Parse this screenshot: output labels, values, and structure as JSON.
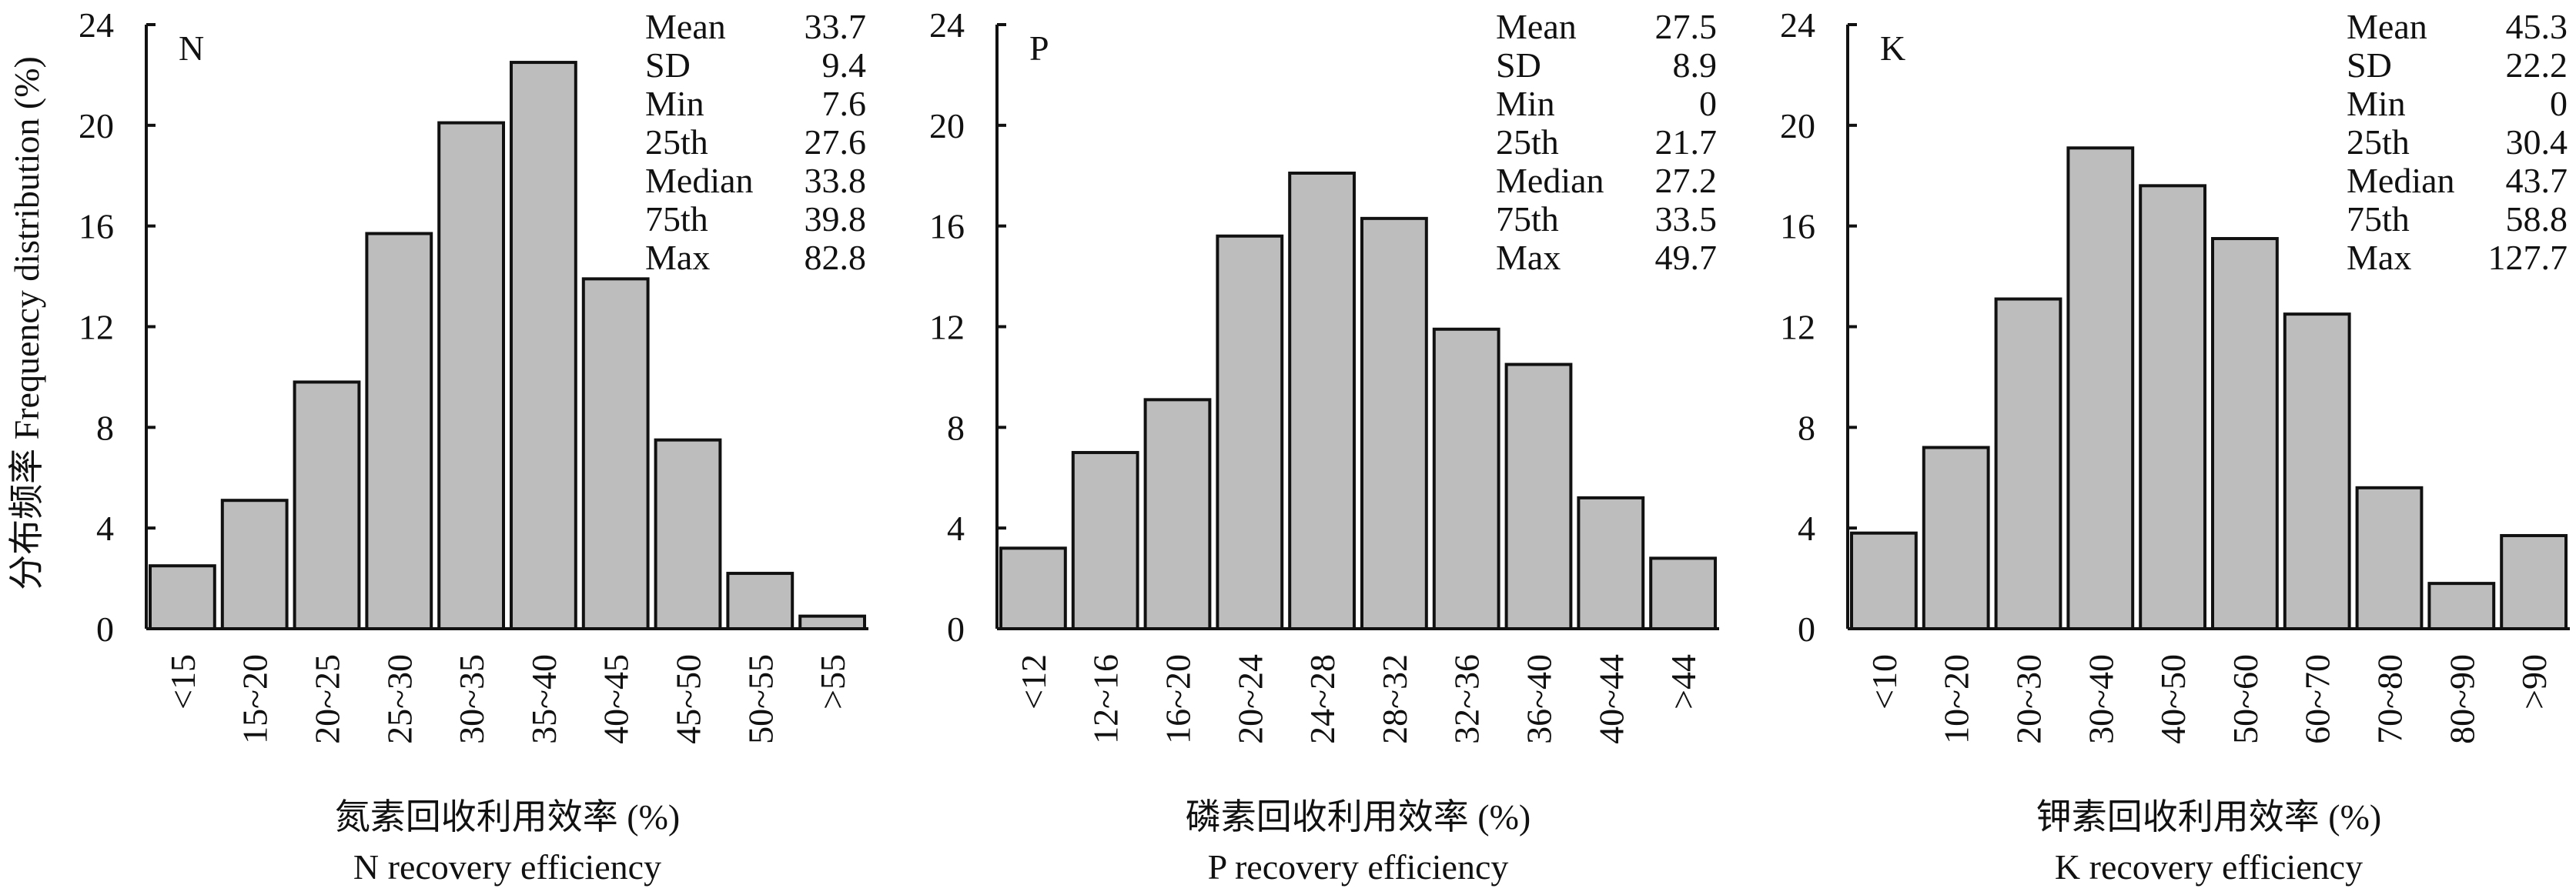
{
  "ylabel": "分布频率 Frequency distribution (%)",
  "chart_data": [
    {
      "type": "bar",
      "panel": "N",
      "categories": [
        "<15",
        "15~20",
        "20~25",
        "25~30",
        "30~35",
        "35~40",
        "40~45",
        "45~50",
        "50~55",
        ">55"
      ],
      "values": [
        2.5,
        5.1,
        9.8,
        15.7,
        20.1,
        22.5,
        13.9,
        7.5,
        2.2,
        0.5
      ],
      "ylim": [
        0,
        24
      ],
      "yticks": [
        0,
        4,
        8,
        12,
        16,
        20,
        24
      ],
      "xlabel_cn": "氮素回收利用效率 (%)",
      "xlabel_en": "N recovery efficiency",
      "stats": [
        {
          "label": "Mean",
          "value": "33.7"
        },
        {
          "label": "SD",
          "value": "9.4"
        },
        {
          "label": "Min",
          "value": "7.6"
        },
        {
          "label": "25th",
          "value": "27.6"
        },
        {
          "label": "Median",
          "value": "33.8"
        },
        {
          "label": "75th",
          "value": "39.8"
        },
        {
          "label": "Max",
          "value": "82.8"
        }
      ]
    },
    {
      "type": "bar",
      "panel": "P",
      "categories": [
        "<12",
        "12~16",
        "16~20",
        "20~24",
        "24~28",
        "28~32",
        "32~36",
        "36~40",
        "40~44",
        ">44"
      ],
      "values": [
        3.2,
        7.0,
        9.1,
        15.6,
        18.1,
        16.3,
        11.9,
        10.5,
        5.2,
        2.8
      ],
      "ylim": [
        0,
        24
      ],
      "yticks": [
        0,
        4,
        8,
        12,
        16,
        20,
        24
      ],
      "xlabel_cn": "磷素回收利用效率 (%)",
      "xlabel_en": "P recovery efficiency",
      "stats": [
        {
          "label": "Mean",
          "value": "27.5"
        },
        {
          "label": "SD",
          "value": "8.9"
        },
        {
          "label": "Min",
          "value": "0"
        },
        {
          "label": "25th",
          "value": "21.7"
        },
        {
          "label": "Median",
          "value": "27.2"
        },
        {
          "label": "75th",
          "value": "33.5"
        },
        {
          "label": "Max",
          "value": "49.7"
        }
      ]
    },
    {
      "type": "bar",
      "panel": "K",
      "categories": [
        "<10",
        "10~20",
        "20~30",
        "30~40",
        "40~50",
        "50~60",
        "60~70",
        "70~80",
        "80~90",
        ">90"
      ],
      "values": [
        3.8,
        7.2,
        13.1,
        19.1,
        17.6,
        15.5,
        12.5,
        5.6,
        1.8,
        3.7
      ],
      "ylim": [
        0,
        24
      ],
      "yticks": [
        0,
        4,
        8,
        12,
        16,
        20,
        24
      ],
      "xlabel_cn": "钾素回收利用效率 (%)",
      "xlabel_en": "K recovery efficiency",
      "stats": [
        {
          "label": "Mean",
          "value": "45.3"
        },
        {
          "label": "SD",
          "value": "22.2"
        },
        {
          "label": "Min",
          "value": "0"
        },
        {
          "label": "25th",
          "value": "30.4"
        },
        {
          "label": "Median",
          "value": "43.7"
        },
        {
          "label": "75th",
          "value": "58.8"
        },
        {
          "label": "Max",
          "value": "127.7"
        }
      ]
    }
  ]
}
